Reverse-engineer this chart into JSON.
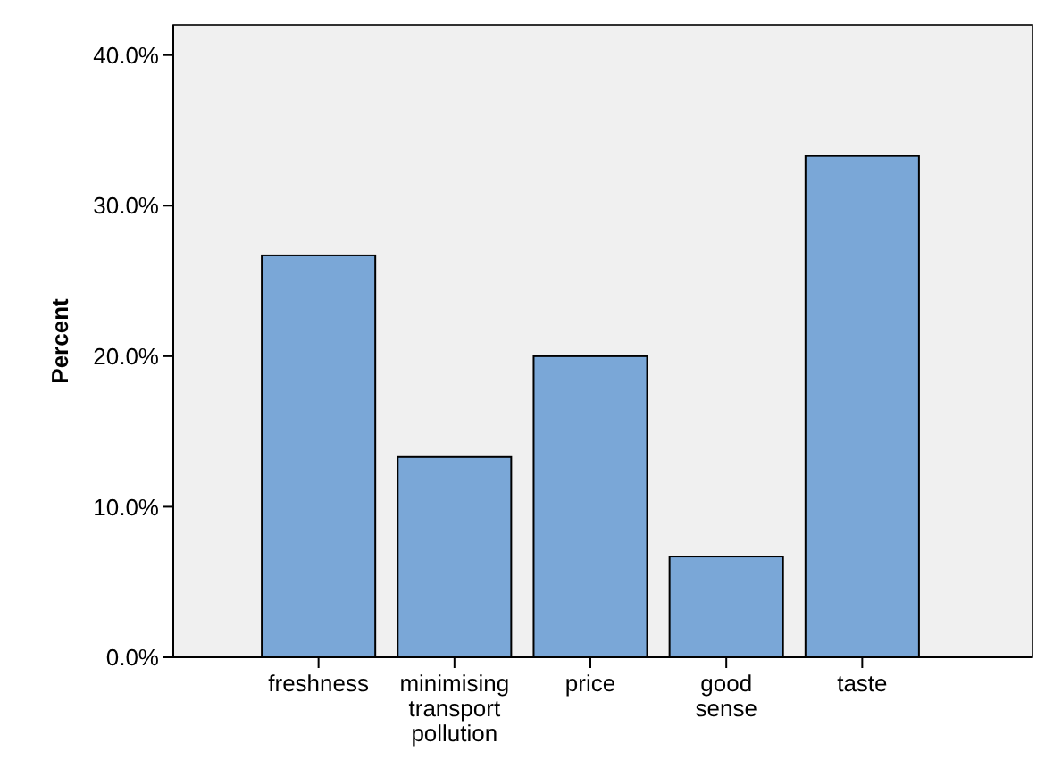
{
  "chart_data": {
    "type": "bar",
    "ylabel": "Percent",
    "categories": [
      "freshness",
      "minimising transport pollution",
      "price",
      "good sense",
      "taste"
    ],
    "values": [
      26.7,
      13.3,
      20.0,
      6.7,
      33.3
    ],
    "color": "#7aa7d7",
    "ylim": [
      0,
      42
    ],
    "yticks": [
      {
        "value": 0,
        "label": "0.0%"
      },
      {
        "value": 10,
        "label": "10.0%"
      },
      {
        "value": 20,
        "label": "20.0%"
      },
      {
        "value": 30,
        "label": "30.0%"
      },
      {
        "value": 40,
        "label": "40.0%"
      }
    ],
    "grid": false
  }
}
